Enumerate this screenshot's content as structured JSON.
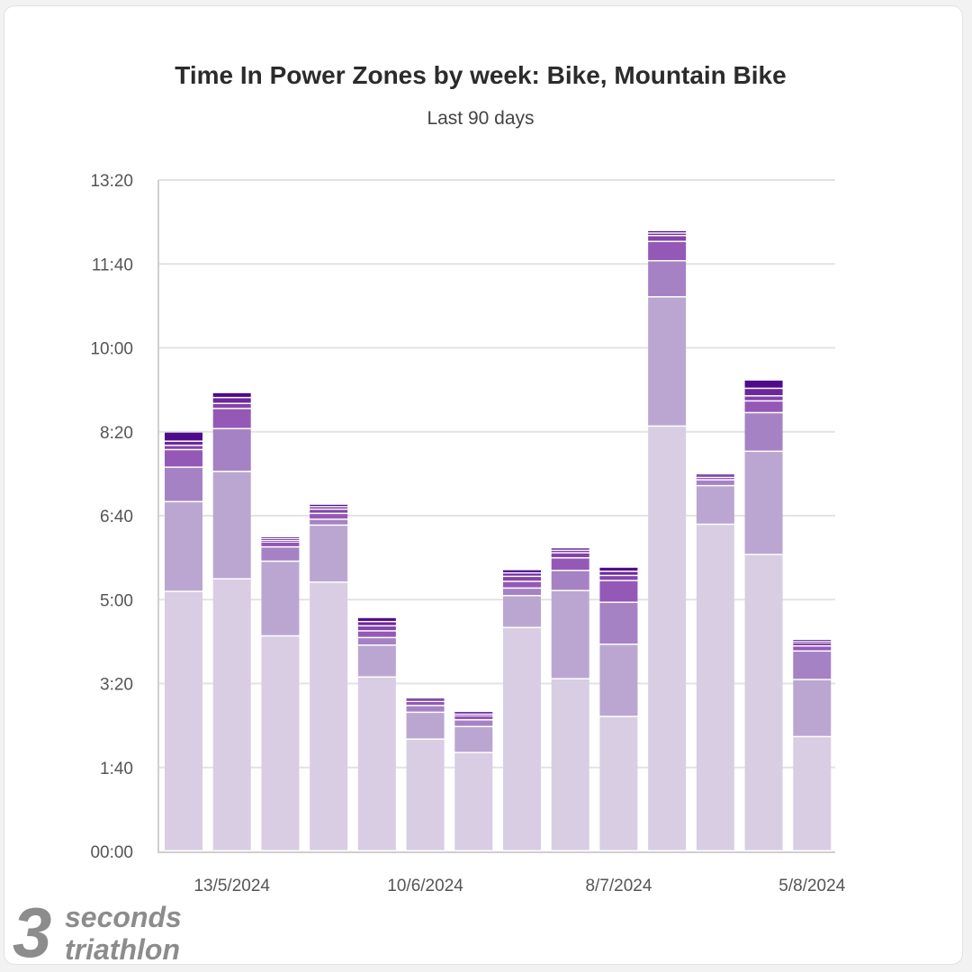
{
  "chart_data": {
    "type": "bar",
    "stacked": true,
    "title": "Time In Power Zones by week: Bike, Mountain Bike",
    "subtitle": "Last 90 days",
    "y_unit": "minutes",
    "ylim": [
      0,
      800
    ],
    "y_ticks": [
      {
        "value": 0,
        "label": "00:00"
      },
      {
        "value": 100,
        "label": "1:40"
      },
      {
        "value": 200,
        "label": "3:20"
      },
      {
        "value": 300,
        "label": "5:00"
      },
      {
        "value": 400,
        "label": "6:40"
      },
      {
        "value": 500,
        "label": "8:20"
      },
      {
        "value": 600,
        "label": "10:00"
      },
      {
        "value": 700,
        "label": "11:40"
      },
      {
        "value": 800,
        "label": "13:20"
      }
    ],
    "x_tick_labels": [
      {
        "bar": 1,
        "label": "13/5/2024"
      },
      {
        "bar": 5,
        "label": "10/6/2024"
      },
      {
        "bar": 9,
        "label": "8/7/2024"
      },
      {
        "bar": 13,
        "label": "5/8/2024"
      }
    ],
    "grid": true,
    "legend": "none",
    "zone_colors": [
      "#d8cde3",
      "#bba6d1",
      "#a582c4",
      "#9459b6",
      "#8344ab",
      "#6d279c",
      "#4f0a8c"
    ],
    "bars": [
      [
        309,
        107,
        41,
        21,
        5,
        5,
        11
      ],
      [
        324,
        128,
        51,
        24,
        6,
        7,
        6
      ],
      [
        256,
        89,
        17,
        6,
        2,
        2,
        2
      ],
      [
        320,
        68,
        7,
        7,
        5,
        3,
        3
      ],
      [
        207,
        38,
        9,
        8,
        6,
        5,
        5
      ],
      [
        133,
        32,
        8,
        5,
        2,
        1,
        1
      ],
      [
        117,
        31,
        8,
        5,
        2,
        2,
        1
      ],
      [
        266,
        38,
        9,
        8,
        6,
        4,
        4
      ],
      [
        205,
        105,
        24,
        15,
        6,
        3,
        3
      ],
      [
        160,
        86,
        50,
        26,
        6,
        5,
        5
      ],
      [
        506,
        154,
        43,
        23,
        7,
        3,
        3
      ],
      [
        389,
        46,
        7,
        3,
        2,
        1,
        1
      ],
      [
        353,
        123,
        46,
        14,
        6,
        9,
        10
      ],
      [
        136,
        68,
        34,
        6,
        4,
        2,
        2
      ]
    ]
  },
  "watermark": {
    "number": "3",
    "line1": "seconds",
    "line2": "triathlon"
  }
}
